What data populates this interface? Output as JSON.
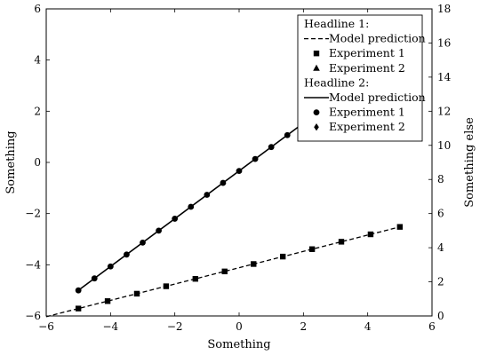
{
  "chart_data": {
    "type": "line",
    "xlabel": "Something",
    "ylabel": "Something",
    "y2label": "Something else",
    "xlim": [
      -6,
      6
    ],
    "ylim": [
      -6,
      6
    ],
    "y2lim": [
      0,
      18
    ],
    "x_ticks": [
      "−6",
      "−4",
      "−2",
      "0",
      "2",
      "4",
      "6"
    ],
    "y_ticks": [
      "−6",
      "−4",
      "−2",
      "0",
      "2",
      "4",
      "6"
    ],
    "y2_ticks": [
      "0",
      "2",
      "4",
      "6",
      "8",
      "10",
      "12",
      "14",
      "16",
      "18"
    ],
    "grid": false,
    "legend_position": "top-right",
    "legend": [
      {
        "kind": "header",
        "label": "Headline 1:"
      },
      {
        "kind": "entry",
        "label": "Model prediction",
        "style": "dashed-line"
      },
      {
        "kind": "entry",
        "label": "Experiment 1",
        "style": "square-marker"
      },
      {
        "kind": "entry",
        "label": "Experiment 2",
        "style": "triangle-marker"
      },
      {
        "kind": "header",
        "label": "Headline 2:"
      },
      {
        "kind": "entry",
        "label": "Model prediction",
        "style": "solid-line"
      },
      {
        "kind": "entry",
        "label": "Experiment 1",
        "style": "circle-marker"
      },
      {
        "kind": "entry",
        "label": "Experiment 2",
        "style": "diamond-marker"
      }
    ],
    "series": [
      {
        "axis": "left",
        "style": "dashed-line",
        "marker": "square",
        "x": [
          -5,
          -4.09,
          -3.18,
          -2.27,
          -1.36,
          -0.45,
          0.45,
          1.36,
          2.27,
          3.18,
          4.09,
          5
        ],
        "values": [
          -5.71,
          -5.42,
          -5.13,
          -4.84,
          -4.55,
          -4.26,
          -3.97,
          -3.68,
          -3.39,
          -3.1,
          -2.81,
          -2.52
        ]
      },
      {
        "axis": "right",
        "style": "solid-line",
        "marker": "circle",
        "x": [
          -5,
          -4.5,
          -4,
          -3.5,
          -3,
          -2.5,
          -2,
          -1.5,
          -1,
          -0.5,
          0,
          0.5,
          1,
          1.5,
          2
        ],
        "values": [
          1.5,
          2.2,
          2.9,
          3.6,
          4.3,
          5.0,
          5.7,
          6.4,
          7.1,
          7.8,
          8.5,
          9.2,
          9.9,
          10.6,
          11.3
        ]
      }
    ]
  },
  "colors": {
    "ink": "#000000",
    "background": "#ffffff"
  }
}
